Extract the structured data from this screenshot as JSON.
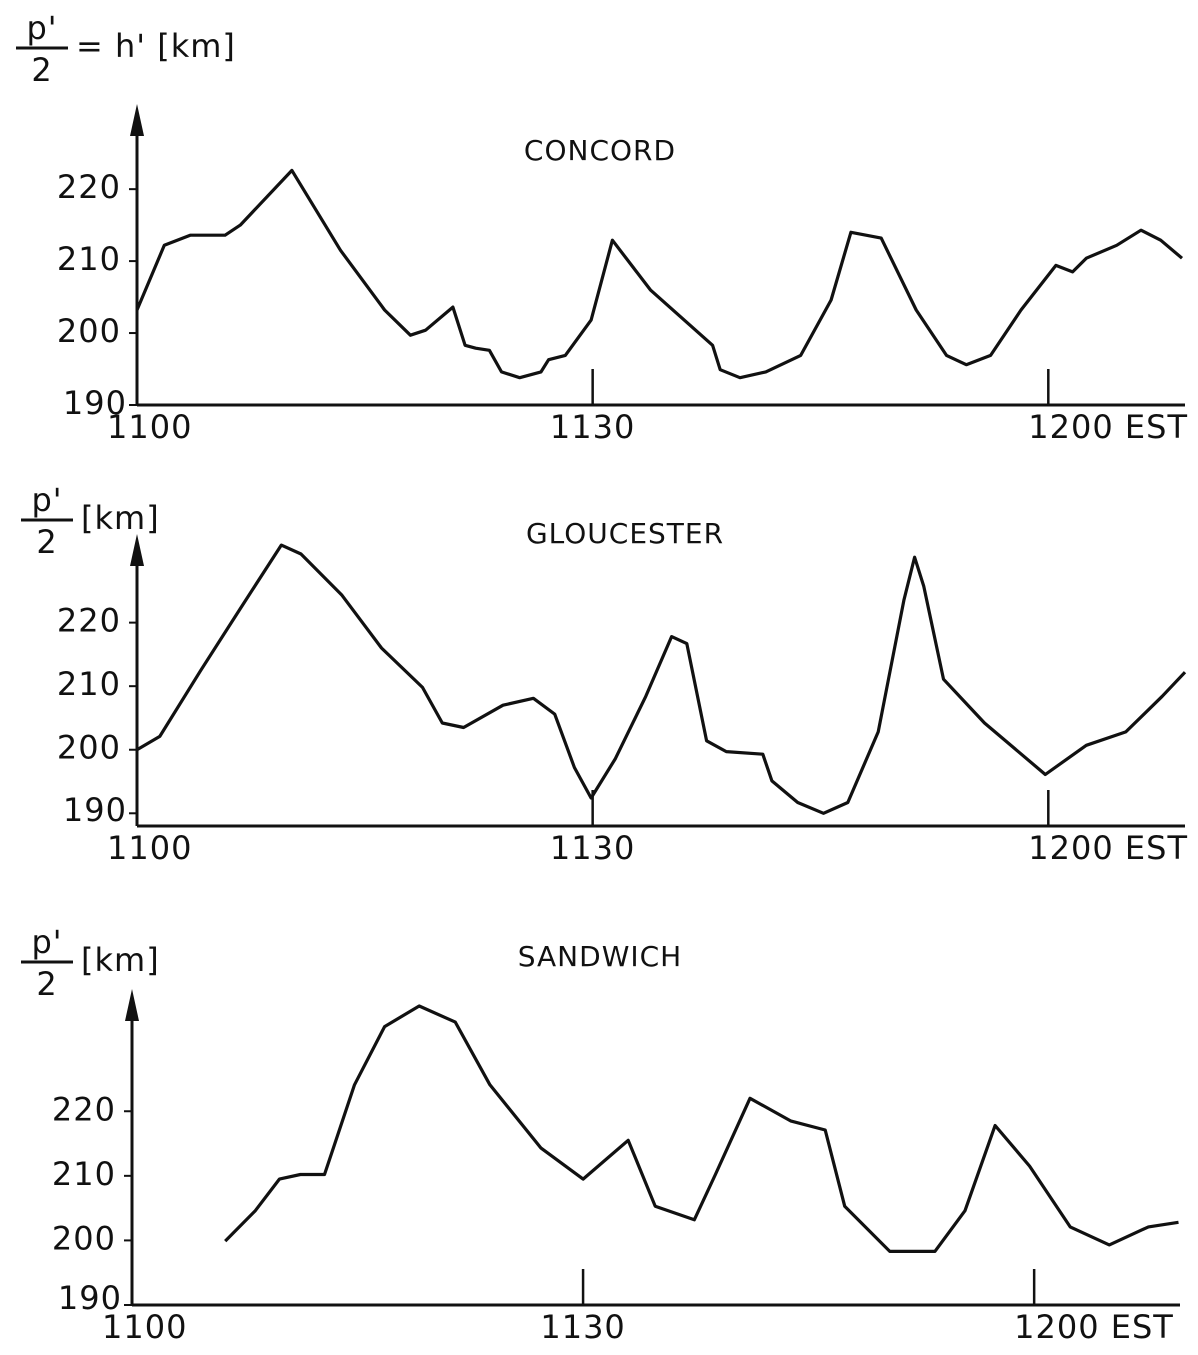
{
  "chart_data": [
    {
      "type": "line",
      "title": "CONCORD",
      "ylabel_numerator": "p'",
      "ylabel_denominator": "2",
      "ylabel_suffix": "= h' [km]",
      "xlim": [
        660,
        729
      ],
      "ylim": [
        190,
        231
      ],
      "xticks": [
        {
          "value": 660,
          "label": "1100"
        },
        {
          "value": 690,
          "label": "1130"
        },
        {
          "value": 720,
          "label": "1200 EST"
        }
      ],
      "yticks": [
        190,
        200,
        210,
        220
      ],
      "x": [
        660,
        661.8,
        663.5,
        665.8,
        666.8,
        670.2,
        673.4,
        676.3,
        678,
        679,
        680.8,
        681.6,
        682.3,
        683.2,
        684,
        685.2,
        686.6,
        687.1,
        688.2,
        689.9,
        691.3,
        693.8,
        697.9,
        698.4,
        699.7,
        701.4,
        703.7,
        705.7,
        707,
        709,
        711.3,
        713.3,
        714.6,
        716.2,
        718.2,
        720.5,
        721.6,
        722.5,
        724.5,
        726.1,
        727.4,
        728.8
      ],
      "series": [
        {
          "color": "#111111",
          "values": [
            203.2,
            212.2,
            213.6,
            213.6,
            215,
            222.6,
            211.5,
            203.2,
            199.7,
            200.4,
            203.6,
            198.3,
            197.9,
            197.6,
            194.6,
            193.8,
            194.6,
            196.3,
            196.9,
            201.8,
            212.9,
            206,
            198.3,
            194.9,
            193.8,
            194.6,
            196.9,
            204.6,
            214,
            213.2,
            203.2,
            196.9,
            195.6,
            196.9,
            203.2,
            209.4,
            208.5,
            210.4,
            212.2,
            214.3,
            212.9,
            210.4
          ]
        }
      ]
    },
    {
      "type": "line",
      "title": "GLOUCESTER",
      "ylabel_numerator": "p'",
      "ylabel_denominator": "2",
      "ylabel_suffix": "[km]",
      "xlim": [
        660,
        729
      ],
      "ylim": [
        188,
        233
      ],
      "xticks": [
        {
          "value": 660,
          "label": "1100"
        },
        {
          "value": 690,
          "label": "1130"
        },
        {
          "value": 720,
          "label": "1200 EST"
        }
      ],
      "yticks": [
        190,
        200,
        210,
        220
      ],
      "x": [
        660,
        661.5,
        664.2,
        666.8,
        669.5,
        670.8,
        673.5,
        676.1,
        678.8,
        680.1,
        681.5,
        684.1,
        686.1,
        687.5,
        688.8,
        689.9,
        691.5,
        693.5,
        695.2,
        696.2,
        697.5,
        698.8,
        701.2,
        701.8,
        703.5,
        705.2,
        706.8,
        708.8,
        710.5,
        711.2,
        711.8,
        713.1,
        715.8,
        719.8,
        722.5,
        725.1,
        727.5,
        729
      ],
      "series": [
        {
          "color": "#111111",
          "values": [
            200,
            202.1,
            212.5,
            222.2,
            232.2,
            230.8,
            224.3,
            216,
            209.8,
            204.2,
            203.5,
            207,
            208.1,
            205.6,
            197.2,
            192.4,
            198.6,
            208.4,
            217.8,
            216.7,
            201.4,
            199.7,
            199.3,
            195.1,
            191.7,
            190,
            191.7,
            202.8,
            223.6,
            230.3,
            225.7,
            211.1,
            204.2,
            196.1,
            200.7,
            202.8,
            208.4,
            212.2
          ]
        }
      ]
    },
    {
      "type": "line",
      "title": "SANDWICH",
      "ylabel_numerator": "p'",
      "ylabel_denominator": "2",
      "ylabel_suffix": "[km]",
      "xlim": [
        660,
        729.7
      ],
      "ylim": [
        190,
        238
      ],
      "xticks": [
        {
          "value": 660,
          "label": "1100"
        },
        {
          "value": 690,
          "label": "1130"
        },
        {
          "value": 720,
          "label": "1200 EST"
        }
      ],
      "yticks": [
        190,
        200,
        210,
        220
      ],
      "x": [
        666.2,
        668.2,
        669.8,
        671.2,
        672.8,
        674.8,
        676.8,
        679.1,
        681.5,
        683.8,
        687.2,
        690,
        693,
        694.8,
        697.4,
        698.8,
        701.1,
        703.8,
        706.1,
        707.4,
        710.4,
        713.4,
        715.4,
        717.4,
        719.7,
        722.4,
        725,
        727.6,
        729.6
      ],
      "series": [
        {
          "color": "#111111",
          "values": [
            199.9,
            204.6,
            209.5,
            210.2,
            210.2,
            224.1,
            233.1,
            236.3,
            233.8,
            224.1,
            214.3,
            209.5,
            215.5,
            205.3,
            203.2,
            210.2,
            222,
            218.5,
            217.1,
            205.3,
            198.3,
            198.3,
            204.6,
            217.8,
            211.5,
            202.1,
            199.3,
            202.1,
            202.8
          ]
        }
      ]
    }
  ]
}
